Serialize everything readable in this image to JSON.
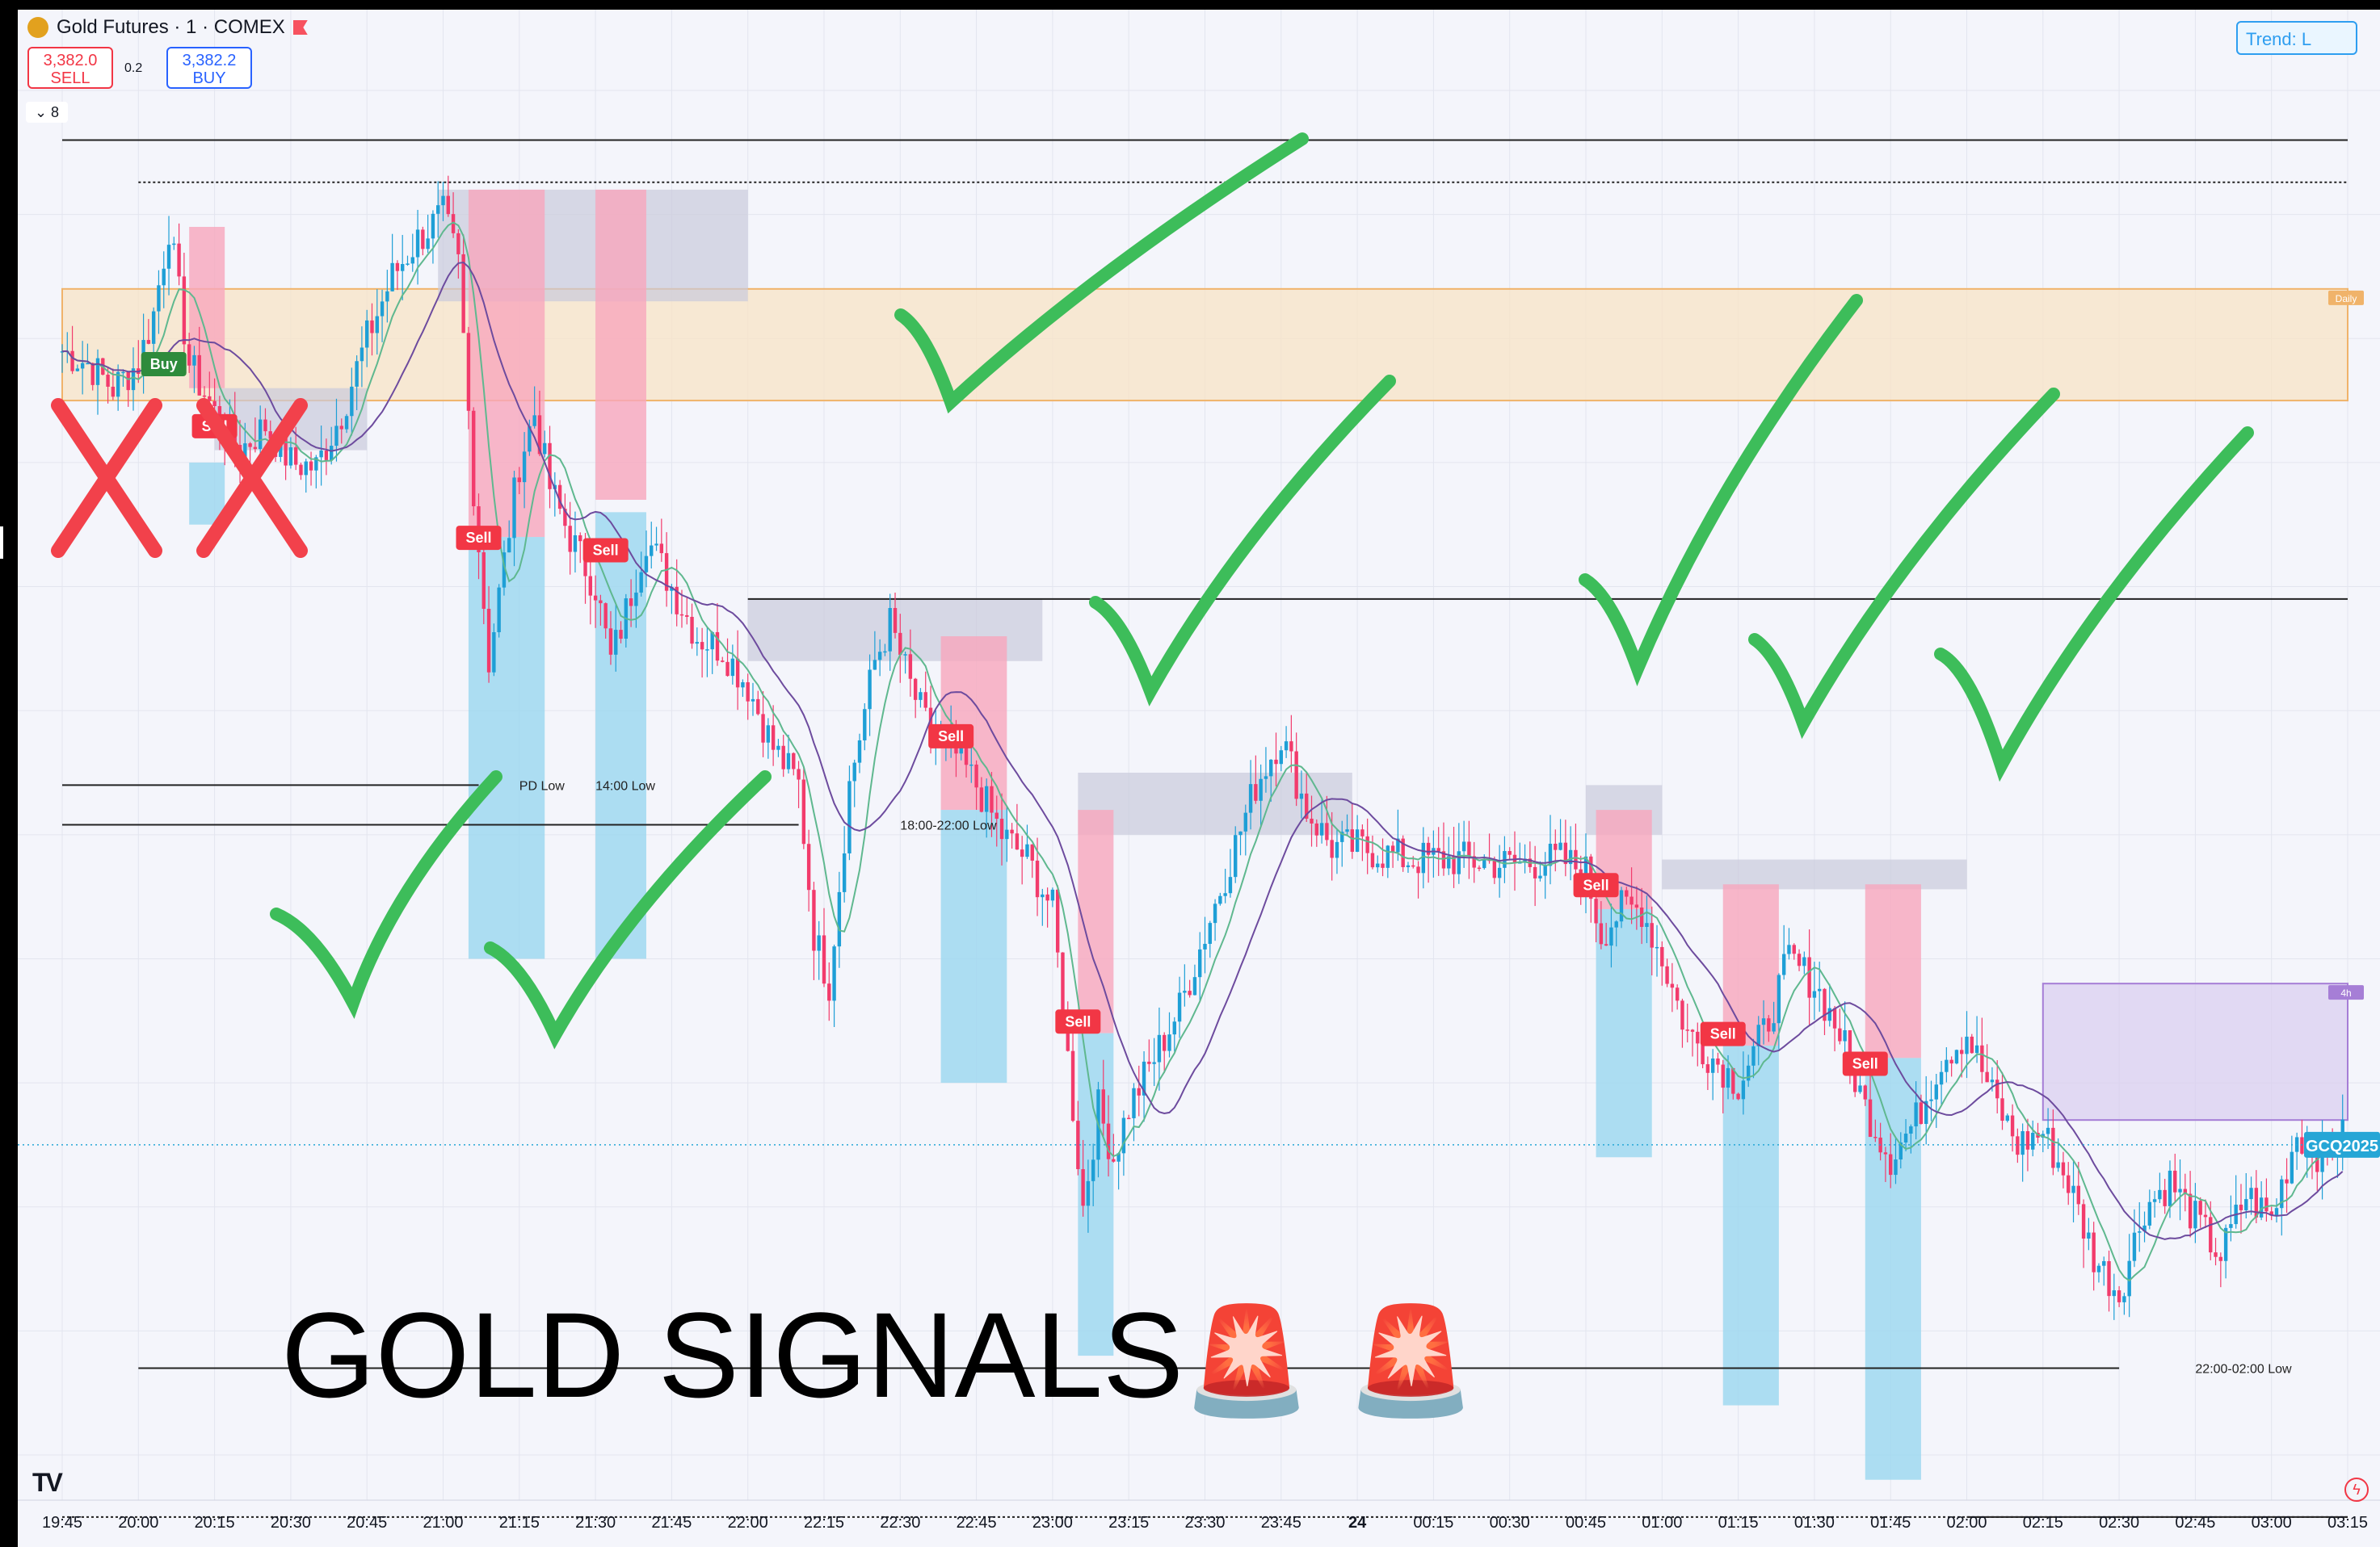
{
  "header": {
    "symbol_title": "Gold Futures · 1 · COMEX",
    "sell_price": "3,382.0",
    "sell_label": "SELL",
    "buy_price": "3,382.2",
    "buy_label": "BUY",
    "spread": "0.2",
    "indicator_count": "⌄ 8",
    "trend_label": "Trend: L"
  },
  "overlay": {
    "headline": "GOLD SIGNALS",
    "siren_emoji": "🚨 🚨"
  },
  "colors": {
    "up_candle": "#1e9fd6",
    "down_candle": "#f23b6c",
    "sell_zone": "#f7a6bd",
    "target_zone": "#9fd8f0",
    "supply_box": "#c9cbdc",
    "daily_zone": "#f8e3c6",
    "h4_zone": "#d9cdf0",
    "check_mark": "#3dbd5a",
    "x_mark": "#f2414b",
    "price_tag": "#26a6d6"
  },
  "chart_data": {
    "type": "candlestick",
    "x_axis_ticks": [
      "19:45",
      "20:00",
      "20:15",
      "20:30",
      "20:45",
      "21:00",
      "21:15",
      "21:30",
      "21:45",
      "22:00",
      "22:15",
      "22:30",
      "22:45",
      "23:00",
      "23:15",
      "23:30",
      "23:45",
      "24",
      "00:15",
      "00:30",
      "00:45",
      "01:00",
      "01:15",
      "01:30",
      "01:45",
      "02:00",
      "02:15",
      "02:30",
      "02:45",
      "03:00",
      "03:15"
    ],
    "current_price_label": "GCQ2025",
    "zone_labels": {
      "daily": "Daily",
      "h4": "4h"
    },
    "level_labels": [
      {
        "text": "PD Low",
        "time": "21:15"
      },
      {
        "text": "14:00 Low",
        "time": "21:30"
      },
      {
        "text": "18:00-22:00 Low",
        "time": "22:30"
      },
      {
        "text": "22:00-02:00 Low",
        "time": "02:45"
      }
    ],
    "signals": [
      {
        "label": "Buy",
        "time": "20:05",
        "result": "loss"
      },
      {
        "label": "Sell",
        "time": "20:15",
        "result": "loss"
      },
      {
        "label": "Sell",
        "time": "21:07",
        "result": "win"
      },
      {
        "label": "Sell",
        "time": "21:32",
        "result": "win"
      },
      {
        "label": "Sell",
        "time": "22:40",
        "result": "win"
      },
      {
        "label": "Sell",
        "time": "23:05",
        "result": "win"
      },
      {
        "label": "Sell",
        "time": "00:47",
        "result": "win"
      },
      {
        "label": "Sell",
        "time": "01:12",
        "result": "win"
      },
      {
        "label": "Sell",
        "time": "01:40",
        "result": "win"
      }
    ],
    "close_path": [
      [
        "19:45",
        3384.5
      ],
      [
        "19:50",
        3384.0
      ],
      [
        "19:55",
        3383.0
      ],
      [
        "20:00",
        3384.0
      ],
      [
        "20:03",
        3386.0
      ],
      [
        "20:06",
        3389.5
      ],
      [
        "20:10",
        3384.0
      ],
      [
        "20:15",
        3382.0
      ],
      [
        "20:20",
        3380.5
      ],
      [
        "20:25",
        3381.5
      ],
      [
        "20:30",
        3380.0
      ],
      [
        "20:35",
        3379.8
      ],
      [
        "20:40",
        3382.0
      ],
      [
        "20:45",
        3385.0
      ],
      [
        "20:50",
        3387.5
      ],
      [
        "20:55",
        3389.0
      ],
      [
        "21:00",
        3390.0
      ],
      [
        "21:03",
        3388.0
      ],
      [
        "21:06",
        3379.0
      ],
      [
        "21:09",
        3372.0
      ],
      [
        "21:12",
        3376.0
      ],
      [
        "21:15",
        3380.0
      ],
      [
        "21:18",
        3382.0
      ],
      [
        "21:21",
        3379.0
      ],
      [
        "21:25",
        3377.0
      ],
      [
        "21:30",
        3375.0
      ],
      [
        "21:33",
        3372.0
      ],
      [
        "21:36",
        3374.0
      ],
      [
        "21:40",
        3377.0
      ],
      [
        "21:45",
        3375.0
      ],
      [
        "21:50",
        3373.0
      ],
      [
        "21:55",
        3372.5
      ],
      [
        "22:00",
        3371.0
      ],
      [
        "22:05",
        3368.5
      ],
      [
        "22:10",
        3367.0
      ],
      [
        "22:13",
        3361.0
      ],
      [
        "22:16",
        3359.0
      ],
      [
        "22:20",
        3367.0
      ],
      [
        "22:25",
        3372.0
      ],
      [
        "22:28",
        3373.5
      ],
      [
        "22:32",
        3371.0
      ],
      [
        "22:36",
        3369.0
      ],
      [
        "22:40",
        3368.5
      ],
      [
        "22:45",
        3367.0
      ],
      [
        "22:50",
        3365.0
      ],
      [
        "22:55",
        3364.0
      ],
      [
        "23:00",
        3362.0
      ],
      [
        "23:03",
        3356.0
      ],
      [
        "23:06",
        3350.0
      ],
      [
        "23:09",
        3354.0
      ],
      [
        "23:12",
        3352.0
      ],
      [
        "23:15",
        3354.0
      ],
      [
        "23:20",
        3356.0
      ],
      [
        "23:25",
        3358.0
      ],
      [
        "23:30",
        3361.0
      ],
      [
        "23:35",
        3364.0
      ],
      [
        "23:40",
        3367.0
      ],
      [
        "23:45",
        3369.0
      ],
      [
        "23:50",
        3366.0
      ],
      [
        "23:55",
        3364.5
      ],
      [
        "00:00",
        3364.5
      ],
      [
        "00:10",
        3364.0
      ],
      [
        "00:20",
        3364.0
      ],
      [
        "00:30",
        3363.8
      ],
      [
        "00:40",
        3364.0
      ],
      [
        "00:45",
        3363.5
      ],
      [
        "00:48",
        3361.0
      ],
      [
        "00:52",
        3362.0
      ],
      [
        "00:56",
        3362.0
      ],
      [
        "01:00",
        3360.0
      ],
      [
        "01:05",
        3357.0
      ],
      [
        "01:10",
        3356.0
      ],
      [
        "01:15",
        3355.0
      ],
      [
        "01:20",
        3357.0
      ],
      [
        "01:25",
        3360.0
      ],
      [
        "01:30",
        3359.0
      ],
      [
        "01:35",
        3357.0
      ],
      [
        "01:40",
        3354.0
      ],
      [
        "01:45",
        3352.0
      ],
      [
        "01:50",
        3353.5
      ],
      [
        "01:55",
        3356.0
      ],
      [
        "02:00",
        3357.0
      ],
      [
        "02:05",
        3354.5
      ],
      [
        "02:10",
        3352.5
      ],
      [
        "02:15",
        3353.0
      ],
      [
        "02:20",
        3351.0
      ],
      [
        "02:25",
        3348.0
      ],
      [
        "02:30",
        3346.5
      ],
      [
        "02:35",
        3350.0
      ],
      [
        "02:40",
        3351.0
      ],
      [
        "02:45",
        3349.5
      ],
      [
        "02:50",
        3348.0
      ],
      [
        "02:55",
        3350.5
      ],
      [
        "03:00",
        3349.5
      ],
      [
        "03:05",
        3353.0
      ],
      [
        "03:10",
        3352.0
      ],
      [
        "03:15",
        3353.0
      ]
    ],
    "y_range": [
      3340,
      3395
    ],
    "grid": true,
    "legend": "none"
  }
}
